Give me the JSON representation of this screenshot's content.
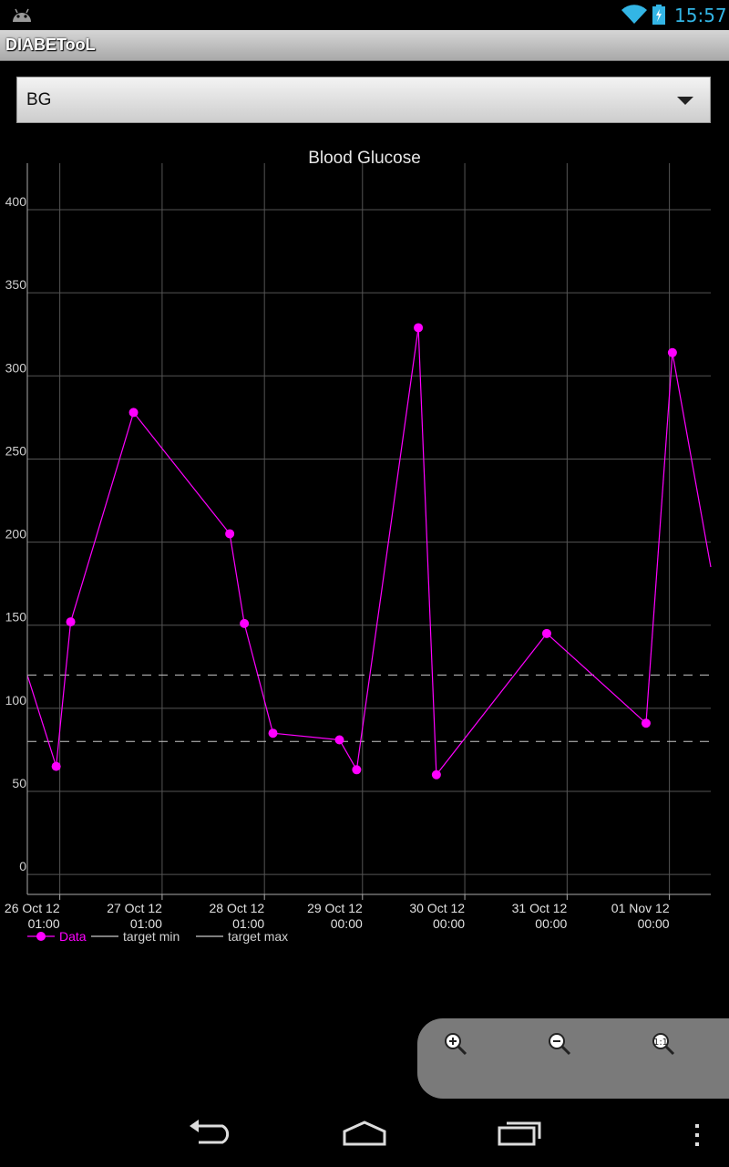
{
  "status_bar": {
    "time": "15:57",
    "icons": [
      "android-icon",
      "wifi-icon",
      "battery-icon"
    ]
  },
  "app": {
    "title": "DIABETooL"
  },
  "selector": {
    "selected": "BG"
  },
  "chart_data": {
    "type": "line",
    "title": "Blood Glucose",
    "y_ticks": [
      0,
      50,
      100,
      150,
      200,
      250,
      300,
      350,
      400
    ],
    "ylim": [
      -12,
      428
    ],
    "x_tick_labels": [
      [
        "26 Oct 12",
        "01:00"
      ],
      [
        "27 Oct 12",
        "01:00"
      ],
      [
        "28 Oct 12",
        "01:00"
      ],
      [
        "29 Oct 12",
        "00:00"
      ],
      [
        "30 Oct 12",
        "00:00"
      ],
      [
        "31 Oct 12",
        "00:00"
      ],
      [
        "01 Nov 12",
        "00:00"
      ]
    ],
    "x_tick_times": [
      "2012-10-26T01:00",
      "2012-10-27T01:00",
      "2012-10-28T01:00",
      "2012-10-29T00:00",
      "2012-10-30T00:00",
      "2012-10-31T00:00",
      "2012-11-01T00:00"
    ],
    "xlim": [
      "2012-10-25T17:23",
      "2012-11-01T09:42"
    ],
    "grid": true,
    "legend": "bottom-left",
    "series": [
      {
        "name": "Data",
        "color": "#ff00ff",
        "points": [
          {
            "x": "2012-10-25T17:23",
            "y": 120,
            "marker": false
          },
          {
            "x": "2012-10-25T24:09",
            "y": 65
          },
          {
            "x": "2012-10-26T03:33",
            "y": 152
          },
          {
            "x": "2012-10-26T18:18",
            "y": 278
          },
          {
            "x": "2012-10-27T16:52",
            "y": 205
          },
          {
            "x": "2012-10-27T20:17",
            "y": 151
          },
          {
            "x": "2012-10-28T03:00",
            "y": 85
          },
          {
            "x": "2012-10-28T18:36",
            "y": 81
          },
          {
            "x": "2012-10-28T22:38",
            "y": 63
          },
          {
            "x": "2012-10-29T13:06",
            "y": 329
          },
          {
            "x": "2012-10-29T17:20",
            "y": 60
          },
          {
            "x": "2012-10-30T19:13",
            "y": 145
          },
          {
            "x": "2012-10-31T18:31",
            "y": 91
          },
          {
            "x": "2012-11-01T00:42",
            "y": 314
          },
          {
            "x": "2012-11-01T09:42",
            "y": 185,
            "marker": false
          }
        ]
      },
      {
        "name": "target min",
        "color": "#c8c8c8",
        "dashed": true,
        "value": 80
      },
      {
        "name": "target max",
        "color": "#c8c8c8",
        "dashed": true,
        "value": 120
      }
    ]
  },
  "zoom_controls": [
    "zoom-in-icon",
    "zoom-out-icon",
    "zoom-reset-icon"
  ],
  "nav_bar": [
    "back-icon",
    "home-icon",
    "recents-icon",
    "menu-icon"
  ]
}
